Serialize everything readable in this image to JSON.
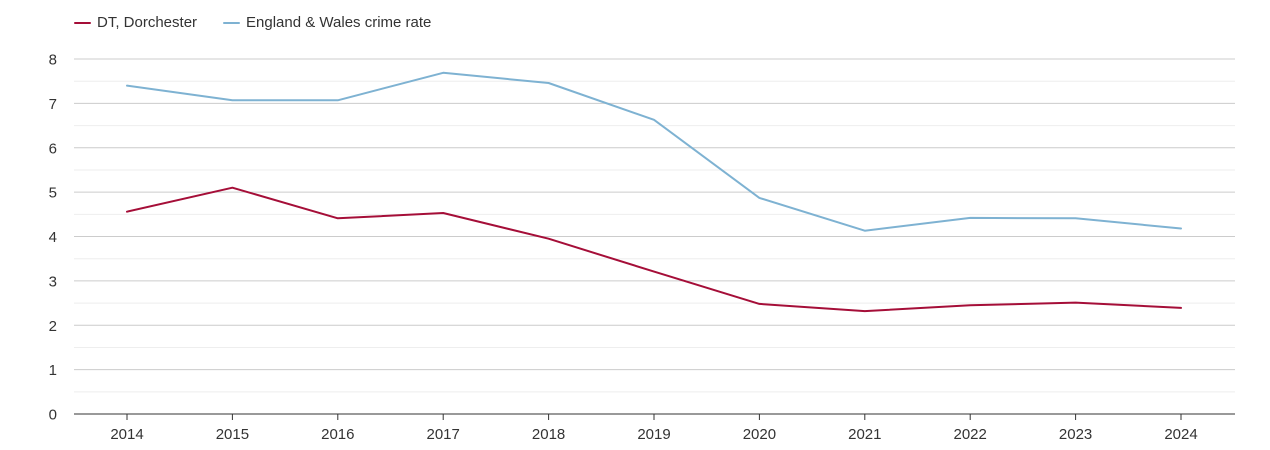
{
  "chart_data": {
    "type": "line",
    "categories": [
      "2014",
      "2015",
      "2016",
      "2017",
      "2018",
      "2019",
      "2020",
      "2021",
      "2022",
      "2023",
      "2024"
    ],
    "series": [
      {
        "name": "DT, Dorchester",
        "color": "#a50e38",
        "values": [
          4.56,
          5.1,
          4.41,
          4.53,
          3.95,
          3.21,
          2.48,
          2.32,
          2.45,
          2.51,
          2.39
        ]
      },
      {
        "name": "England & Wales crime rate",
        "color": "#7eb2d2",
        "values": [
          7.4,
          7.07,
          7.07,
          7.69,
          7.46,
          6.63,
          4.87,
          4.13,
          4.42,
          4.41,
          4.18
        ]
      }
    ],
    "yticks": [
      "0",
      "1",
      "2",
      "3",
      "4",
      "5",
      "6",
      "7",
      "8"
    ],
    "ylim": [
      0,
      8
    ],
    "grid": true,
    "legend_position": "top-left",
    "title": "",
    "xlabel": "",
    "ylabel": ""
  }
}
